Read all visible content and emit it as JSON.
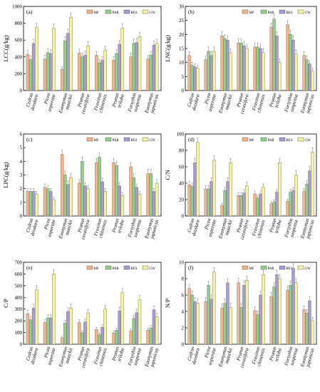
{
  "figure": {
    "species": [
      "Cedrus deodara",
      "Picea asperata",
      "Euonymus maackii",
      "Prunus cerasifera",
      "Fraxinus chinensis",
      "Prunus triloba",
      "Forsythia suspensa",
      "Euonymus japonicus"
    ],
    "legend": [
      "MF",
      "PAR",
      "RES",
      "GW"
    ],
    "colors": {
      "MF": "#f2b48c",
      "PAR": "#8fcf8a",
      "RES": "#a99ad1",
      "GW": "#f6f29c"
    }
  },
  "chart_data": [
    {
      "type": "bar",
      "panel_label": "(a)",
      "ylabel": "LCC(g/kg)",
      "ylim": [
        0,
        1000
      ],
      "yticks": [
        0,
        200,
        400,
        600,
        800,
        1000
      ],
      "categories": [
        "Cedrus deodara",
        "Picea asperata",
        "Euonymus maackii",
        "Prunus cerasifera",
        "Fraxinus chinensis",
        "Prunus triloba",
        "Forsythia suspensa",
        "Euonymus japonicus"
      ],
      "series": [
        {
          "name": "MF",
          "values": [
            430,
            375,
            250,
            445,
            420,
            360,
            400,
            375
          ]
        },
        {
          "name": "PAR",
          "values": [
            370,
            450,
            590,
            400,
            330,
            440,
            560,
            420
          ]
        },
        {
          "name": "RES",
          "values": [
            560,
            440,
            680,
            420,
            360,
            550,
            570,
            540
          ]
        },
        {
          "name": "GW",
          "values": [
            750,
            740,
            870,
            530,
            480,
            740,
            640,
            560
          ]
        }
      ]
    },
    {
      "type": "bar",
      "panel_label": "(b)",
      "ylabel": "LNC(g/kg)",
      "ylim": [
        0,
        30
      ],
      "yticks": [
        0,
        5,
        10,
        15,
        20,
        25,
        30
      ],
      "categories": [
        "Cedrus deodara",
        "Picea asperata",
        "Euonymus maackii",
        "Prunus cerasifera",
        "Fraxinus chinensis",
        "Prunus triloba",
        "Forsythia suspensa",
        "Euonymus japonicus"
      ],
      "series": [
        {
          "name": "MF",
          "values": [
            12.5,
            11.0,
            19.5,
            17.0,
            15.5,
            22.5,
            23.5,
            12.5
          ]
        },
        {
          "name": "PAR",
          "values": [
            9.0,
            14.0,
            18.5,
            17.0,
            15.5,
            25.5,
            20.0,
            11.0
          ]
        },
        {
          "name": "RES",
          "values": [
            8.5,
            12.5,
            18.0,
            16.0,
            15.0,
            19.5,
            18.0,
            9.5
          ]
        },
        {
          "name": "GW",
          "values": [
            8.0,
            14.0,
            13.5,
            15.0,
            13.5,
            10.0,
            13.0,
            7.0
          ]
        }
      ]
    },
    {
      "type": "bar",
      "panel_label": "(c)",
      "ylabel": "LPC(g/kg)",
      "ylim": [
        0,
        6
      ],
      "yticks": [
        0,
        1,
        2,
        3,
        4,
        5,
        6
      ],
      "categories": [
        "Cedrus deodara",
        "Picea asperata",
        "Euonymus maackii",
        "Prunus cerasifera",
        "Fraxinus chinensis",
        "Prunus triloba",
        "Forsythia suspensa",
        "Euonymus japonicus"
      ],
      "series": [
        {
          "name": "MF",
          "values": [
            1.8,
            2.1,
            4.5,
            2.4,
            3.9,
            3.9,
            3.6,
            3.1
          ]
        },
        {
          "name": "PAR",
          "values": [
            1.8,
            2.0,
            3.0,
            4.0,
            4.3,
            3.7,
            2.8,
            3.1
          ]
        },
        {
          "name": "RES",
          "values": [
            1.8,
            1.8,
            2.3,
            2.2,
            2.5,
            2.2,
            2.1,
            1.8
          ]
        },
        {
          "name": "GW",
          "values": [
            1.6,
            1.2,
            2.8,
            2.0,
            1.8,
            1.5,
            1.6,
            2.4
          ]
        }
      ]
    },
    {
      "type": "bar",
      "panel_label": "(d)",
      "ylabel": "C/N",
      "ylim": [
        0,
        100
      ],
      "yticks": [
        0,
        20,
        40,
        60,
        80,
        100
      ],
      "categories": [
        "Cedrus deodara",
        "Picea asperata",
        "Euonymus maackii",
        "Prunus cerasifera",
        "Fraxinus chinensis",
        "Prunus triloba",
        "Forsythia suspensa",
        "Euonymus japonicus"
      ],
      "series": [
        {
          "name": "MF",
          "values": [
            38,
            33,
            13,
            25,
            27,
            15,
            18,
            30
          ]
        },
        {
          "name": "PAR",
          "values": [
            36,
            33,
            31,
            25,
            22,
            17,
            29,
            39
          ]
        },
        {
          "name": "RES",
          "values": [
            65,
            42,
            42,
            28,
            27,
            29,
            31,
            55
          ]
        },
        {
          "name": "GW",
          "values": [
            90,
            68,
            65,
            37,
            35,
            65,
            50,
            78
          ]
        }
      ]
    },
    {
      "type": "bar",
      "panel_label": "(e)",
      "ylabel": "C/P",
      "ylim": [
        0,
        700
      ],
      "yticks": [
        0,
        100,
        200,
        300,
        400,
        500,
        600,
        700
      ],
      "categories": [
        "Cedrus deodara",
        "Picea asperata",
        "Euonymus maackii",
        "Prunus cerasifera",
        "Fraxinus chinensis",
        "Prunus triloba",
        "Forsythia suspensa",
        "Euonymus japonicus"
      ],
      "series": [
        {
          "name": "MF",
          "values": [
            260,
            185,
            55,
            185,
            125,
            95,
            115,
            120
          ]
        },
        {
          "name": "PAR",
          "values": [
            210,
            225,
            180,
            100,
            80,
            120,
            220,
            140
          ]
        },
        {
          "name": "RES",
          "values": [
            310,
            225,
            280,
            190,
            145,
            285,
            270,
            295
          ]
        },
        {
          "name": "GW",
          "values": [
            465,
            600,
            310,
            265,
            300,
            440,
            380,
            235
          ]
        }
      ]
    },
    {
      "type": "bar",
      "panel_label": "(f)",
      "ylabel": "N/P",
      "ylim": [
        0,
        10
      ],
      "yticks": [
        0,
        2,
        4,
        6,
        8,
        10
      ],
      "categories": [
        "Cedrus deodara",
        "Picea asperata",
        "Euonymus maackii",
        "Prunus cerasifera",
        "Fraxinus chinensis",
        "Prunus triloba",
        "Forsythia suspensa",
        "Euonymus japonicus"
      ],
      "series": [
        {
          "name": "MF",
          "values": [
            6.8,
            5.2,
            4.4,
            7.5,
            4.1,
            5.8,
            6.6,
            4.2
          ]
        },
        {
          "name": "PAR",
          "values": [
            6.0,
            7.2,
            5.0,
            4.5,
            3.6,
            7.0,
            7.2,
            3.8
          ]
        },
        {
          "name": "RES",
          "values": [
            5.2,
            5.5,
            7.5,
            7.2,
            6.0,
            8.5,
            9.3,
            5.3
          ]
        },
        {
          "name": "GW",
          "values": [
            5.0,
            8.8,
            4.5,
            7.8,
            8.5,
            8.0,
            7.5,
            2.9
          ]
        }
      ]
    }
  ]
}
